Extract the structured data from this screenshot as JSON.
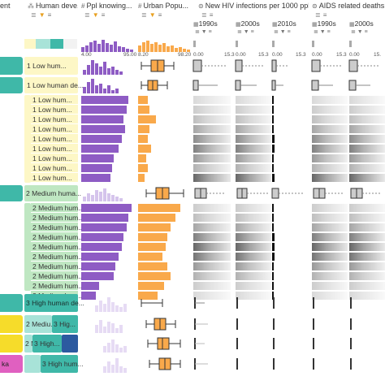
{
  "columns": {
    "c0": "ent",
    "c1": "Human deve...",
    "c2": "Ppl knowing...",
    "c3": "Urban Popu...",
    "c4": "New HIV infections per 1000 ppl ...",
    "c5": "AIDS related deaths pe"
  },
  "subcolumns": [
    "1990s",
    "2000s",
    "2010s",
    "1990s",
    "2000s"
  ],
  "axis": {
    "ppl_min": "4.00",
    "ppl_max": "95.00",
    "urb_min": "8.20",
    "urb_max": "98.20",
    "hiv_min1": "0.00",
    "hiv_max1": "15.3",
    "hiv_min2": "0.00",
    "hiv_max2": "15.3",
    "hiv_min3": "0.00",
    "hiv_max3": "15.3",
    "aids_min1": "0.00",
    "aids_max1": "15.3",
    "aids_min2": "0.00",
    "aids_max2": "15."
  },
  "groups": {
    "g1a": "1 Low hum...",
    "g1b": "1 Low human de...",
    "g1_rows": [
      "1 Low hum...",
      "1 Low hum...",
      "1 Low hum...",
      "1 Low hum...",
      "1 Low hum...",
      "1 Low hum...",
      "1 Low hum...",
      "1 Low hum...",
      "1 Low hum..."
    ],
    "g2": "2 Medium huma...",
    "g2_rows": [
      "2 Medium hum...",
      "2 Medium hum...",
      "2 Medium hum...",
      "2 Medium hum...",
      "2 Medium hum...",
      "2 Medium hum...",
      "2 Medium hum...",
      "2 Medium hum...",
      "2 Medium hum...",
      "2 Medium hum..."
    ],
    "g3": "3 High human de...",
    "g3a": "2 Mediu...",
    "g3b": "3 Hig...",
    "g3c": "2 Mediu...",
    "g3d": "3 High...",
    "g4": "2 M...",
    "g4b": "3 High hum..."
  },
  "colors": {
    "teal": "#3fb8a8",
    "teal_light": "#a8e3d8",
    "yellow_light": "#fdf7c6",
    "green_light": "#bfe7c2",
    "purple": "#8e5cc4",
    "orange": "#f9a94b",
    "blue": "#2c5aa0",
    "yellow": "#f6dc2a",
    "pink": "#e060c0"
  }
}
